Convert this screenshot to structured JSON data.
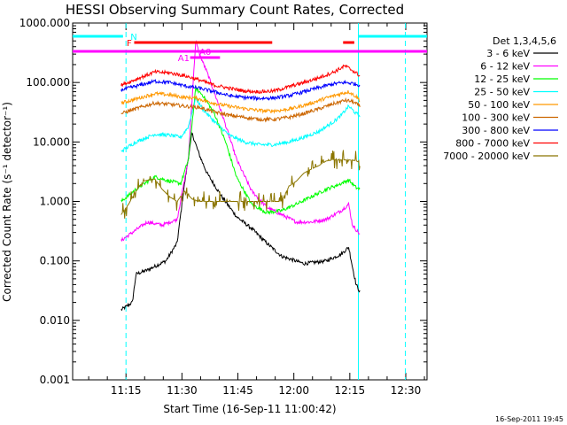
{
  "chart_data": {
    "type": "line",
    "title": "HESSI Observing Summary Count Rates, Corrected",
    "xlabel": "Start Time (16-Sep-11 11:00:42)",
    "ylabel": "Corrected Count Rate (s⁻¹ detector⁻¹)",
    "x_unit": "minutes after 11:00:42",
    "xlim": [
      0,
      95
    ],
    "ylim": [
      0.001,
      1000
    ],
    "yscale": "log",
    "x_ticks": [
      {
        "t": 14.3,
        "label": "11:15"
      },
      {
        "t": 29.3,
        "label": "11:30"
      },
      {
        "t": 44.3,
        "label": "11:45"
      },
      {
        "t": 59.3,
        "label": "12:00"
      },
      {
        "t": 74.3,
        "label": "12:15"
      },
      {
        "t": 89.3,
        "label": "12:30"
      }
    ],
    "y_ticks": [
      {
        "v": 0.001,
        "label": "0.001"
      },
      {
        "v": 0.01,
        "label": "0.010"
      },
      {
        "v": 0.1,
        "label": "0.100"
      },
      {
        "v": 1,
        "label": "1.000"
      },
      {
        "v": 10,
        "label": "10.000"
      },
      {
        "v": 100,
        "label": "100.000"
      },
      {
        "v": 1000,
        "label": "1000.000"
      }
    ],
    "legend_title": "Det 1,3,4,5,6",
    "legend_position": "right, outside plot",
    "series": [
      {
        "name": "3 - 6 keV",
        "color": "#000000",
        "points": [
          [
            13,
            0.015
          ],
          [
            16,
            0.02
          ],
          [
            17,
            0.06
          ],
          [
            20,
            0.07
          ],
          [
            25,
            0.1
          ],
          [
            28,
            0.2
          ],
          [
            30,
            2
          ],
          [
            32,
            14
          ],
          [
            34,
            6
          ],
          [
            36,
            3
          ],
          [
            40,
            1.2
          ],
          [
            44,
            0.55
          ],
          [
            48,
            0.35
          ],
          [
            52,
            0.2
          ],
          [
            56,
            0.12
          ],
          [
            62,
            0.09
          ],
          [
            68,
            0.1
          ],
          [
            72,
            0.13
          ],
          [
            74,
            0.17
          ],
          [
            75,
            0.08
          ],
          [
            76,
            0.04
          ],
          [
            77,
            0.03
          ]
        ]
      },
      {
        "name": "6 - 12 keV",
        "color": "#ff00ff",
        "points": [
          [
            13,
            0.22
          ],
          [
            16,
            0.3
          ],
          [
            20,
            0.45
          ],
          [
            24,
            0.4
          ],
          [
            28,
            0.5
          ],
          [
            31,
            5
          ],
          [
            33,
            500
          ],
          [
            34,
            300
          ],
          [
            36,
            150
          ],
          [
            40,
            30
          ],
          [
            44,
            5
          ],
          [
            48,
            1.5
          ],
          [
            52,
            0.8
          ],
          [
            56,
            0.6
          ],
          [
            60,
            0.45
          ],
          [
            64,
            0.45
          ],
          [
            68,
            0.5
          ],
          [
            72,
            0.7
          ],
          [
            74,
            0.9
          ],
          [
            75,
            0.4
          ],
          [
            77,
            0.28
          ]
        ]
      },
      {
        "name": "12 - 25 keV",
        "color": "#00ff00",
        "points": [
          [
            13,
            1.0
          ],
          [
            17,
            1.6
          ],
          [
            22,
            2.6
          ],
          [
            26,
            2.2
          ],
          [
            29,
            2.0
          ],
          [
            31,
            5
          ],
          [
            33,
            80
          ],
          [
            35,
            60
          ],
          [
            38,
            30
          ],
          [
            41,
            10
          ],
          [
            44,
            2.5
          ],
          [
            48,
            0.9
          ],
          [
            52,
            0.65
          ],
          [
            56,
            0.7
          ],
          [
            60,
            0.9
          ],
          [
            64,
            1.2
          ],
          [
            68,
            1.6
          ],
          [
            72,
            2.0
          ],
          [
            74,
            2.3
          ],
          [
            76,
            1.7
          ],
          [
            77,
            1.6
          ]
        ]
      },
      {
        "name": "25 - 50 keV",
        "color": "#00ffff",
        "points": [
          [
            13,
            7
          ],
          [
            17,
            10
          ],
          [
            22,
            13.5
          ],
          [
            26,
            13
          ],
          [
            29,
            12
          ],
          [
            31,
            18
          ],
          [
            33,
            55
          ],
          [
            35,
            35
          ],
          [
            38,
            22
          ],
          [
            42,
            13
          ],
          [
            46,
            10
          ],
          [
            50,
            9
          ],
          [
            54,
            9
          ],
          [
            58,
            10
          ],
          [
            62,
            12
          ],
          [
            66,
            15
          ],
          [
            70,
            22
          ],
          [
            72,
            28
          ],
          [
            74,
            40
          ],
          [
            76,
            30
          ],
          [
            77,
            28
          ]
        ]
      },
      {
        "name": "50 - 100 keV",
        "color": "#ff9900",
        "points": [
          [
            13,
            45
          ],
          [
            18,
            55
          ],
          [
            22,
            65
          ],
          [
            26,
            62
          ],
          [
            30,
            56
          ],
          [
            33,
            55
          ],
          [
            36,
            48
          ],
          [
            40,
            42
          ],
          [
            44,
            38
          ],
          [
            48,
            35
          ],
          [
            52,
            33
          ],
          [
            56,
            34
          ],
          [
            60,
            38
          ],
          [
            64,
            45
          ],
          [
            68,
            55
          ],
          [
            72,
            65
          ],
          [
            74,
            70
          ],
          [
            76,
            58
          ],
          [
            77,
            50
          ]
        ]
      },
      {
        "name": "100 - 300 keV",
        "color": "#cc6600",
        "points": [
          [
            13,
            30
          ],
          [
            18,
            38
          ],
          [
            22,
            45
          ],
          [
            26,
            43
          ],
          [
            30,
            40
          ],
          [
            34,
            38
          ],
          [
            38,
            32
          ],
          [
            42,
            28
          ],
          [
            46,
            26
          ],
          [
            50,
            24
          ],
          [
            54,
            24
          ],
          [
            58,
            26
          ],
          [
            62,
            30
          ],
          [
            66,
            36
          ],
          [
            70,
            44
          ],
          [
            73,
            50
          ],
          [
            75,
            48
          ],
          [
            77,
            40
          ]
        ]
      },
      {
        "name": "300 - 800 keV",
        "color": "#0000ff",
        "points": [
          [
            13,
            75
          ],
          [
            18,
            90
          ],
          [
            22,
            105
          ],
          [
            26,
            100
          ],
          [
            30,
            88
          ],
          [
            34,
            80
          ],
          [
            38,
            70
          ],
          [
            42,
            60
          ],
          [
            46,
            56
          ],
          [
            50,
            54
          ],
          [
            54,
            55
          ],
          [
            58,
            60
          ],
          [
            62,
            70
          ],
          [
            66,
            82
          ],
          [
            70,
            95
          ],
          [
            73,
            100
          ],
          [
            75,
            97
          ],
          [
            77,
            90
          ]
        ]
      },
      {
        "name": "800 - 7000 keV",
        "color": "#ff0000",
        "points": [
          [
            13,
            90
          ],
          [
            18,
            120
          ],
          [
            22,
            150
          ],
          [
            26,
            145
          ],
          [
            30,
            130
          ],
          [
            34,
            110
          ],
          [
            38,
            90
          ],
          [
            42,
            80
          ],
          [
            46,
            72
          ],
          [
            50,
            70
          ],
          [
            54,
            72
          ],
          [
            58,
            85
          ],
          [
            62,
            100
          ],
          [
            66,
            120
          ],
          [
            70,
            150
          ],
          [
            73,
            190
          ],
          [
            75,
            160
          ],
          [
            77,
            130
          ]
        ]
      },
      {
        "name": "7000 - 20000 keV",
        "color": "#8b7500",
        "points": [
          [
            13,
            0.6
          ],
          [
            15,
            0.9
          ],
          [
            17,
            1.5
          ],
          [
            19,
            2.2
          ],
          [
            22,
            2.4
          ],
          [
            24,
            1.6
          ],
          [
            26,
            1.2
          ],
          [
            28,
            1.0
          ],
          [
            30,
            1.5
          ],
          [
            32,
            1.1
          ],
          [
            34,
            1.0
          ],
          [
            36,
            1.0
          ],
          [
            40,
            1.0
          ],
          [
            44,
            1.0
          ],
          [
            48,
            1.0
          ],
          [
            52,
            1.0
          ],
          [
            56,
            1.0
          ],
          [
            58,
            1.8
          ],
          [
            60,
            2.2
          ],
          [
            62,
            3.0
          ],
          [
            64,
            3.5
          ],
          [
            66,
            4.0
          ],
          [
            68,
            4.8
          ],
          [
            70,
            5.0
          ],
          [
            72,
            5.0
          ],
          [
            74,
            5.0
          ],
          [
            76,
            4.8
          ],
          [
            77,
            4.5
          ]
        ]
      }
    ],
    "vlines": [
      {
        "t": 14.3,
        "color": "#00ffff",
        "style": "dashed"
      },
      {
        "t": 89.2,
        "color": "#00ffff",
        "style": "dashed"
      },
      {
        "t": 76.6,
        "color": "#00ffff",
        "style": "solid"
      }
    ],
    "flag_bars": [
      {
        "label": "N",
        "color": "#00ffff",
        "y_level": "top",
        "segments": [
          [
            0,
            13.5
          ],
          [
            76.5,
            95
          ]
        ],
        "label_t": 15.5
      },
      {
        "label": "F",
        "color": "#ff0000",
        "y_level": "second",
        "segments": [
          [
            16.5,
            53.5
          ],
          [
            72.5,
            75.5
          ]
        ],
        "label_t": 14.5
      },
      {
        "label": "",
        "color": "#ff00ff",
        "y_level": "third",
        "segments": [
          [
            0,
            95
          ]
        ],
        "label_t": null
      },
      {
        "label": "A1",
        "color": "#ff00ff",
        "y_level": "fourth",
        "segments": [
          [
            31.5,
            39.5
          ]
        ],
        "label_t": 28.2
      },
      {
        "label": "A0",
        "color": "#ff00ff",
        "y_level": "a0",
        "segments": [
          [
            32.5,
            33.5
          ]
        ],
        "label_t": 34.0
      }
    ],
    "timestamp": "16-Sep-2011 19:45"
  }
}
